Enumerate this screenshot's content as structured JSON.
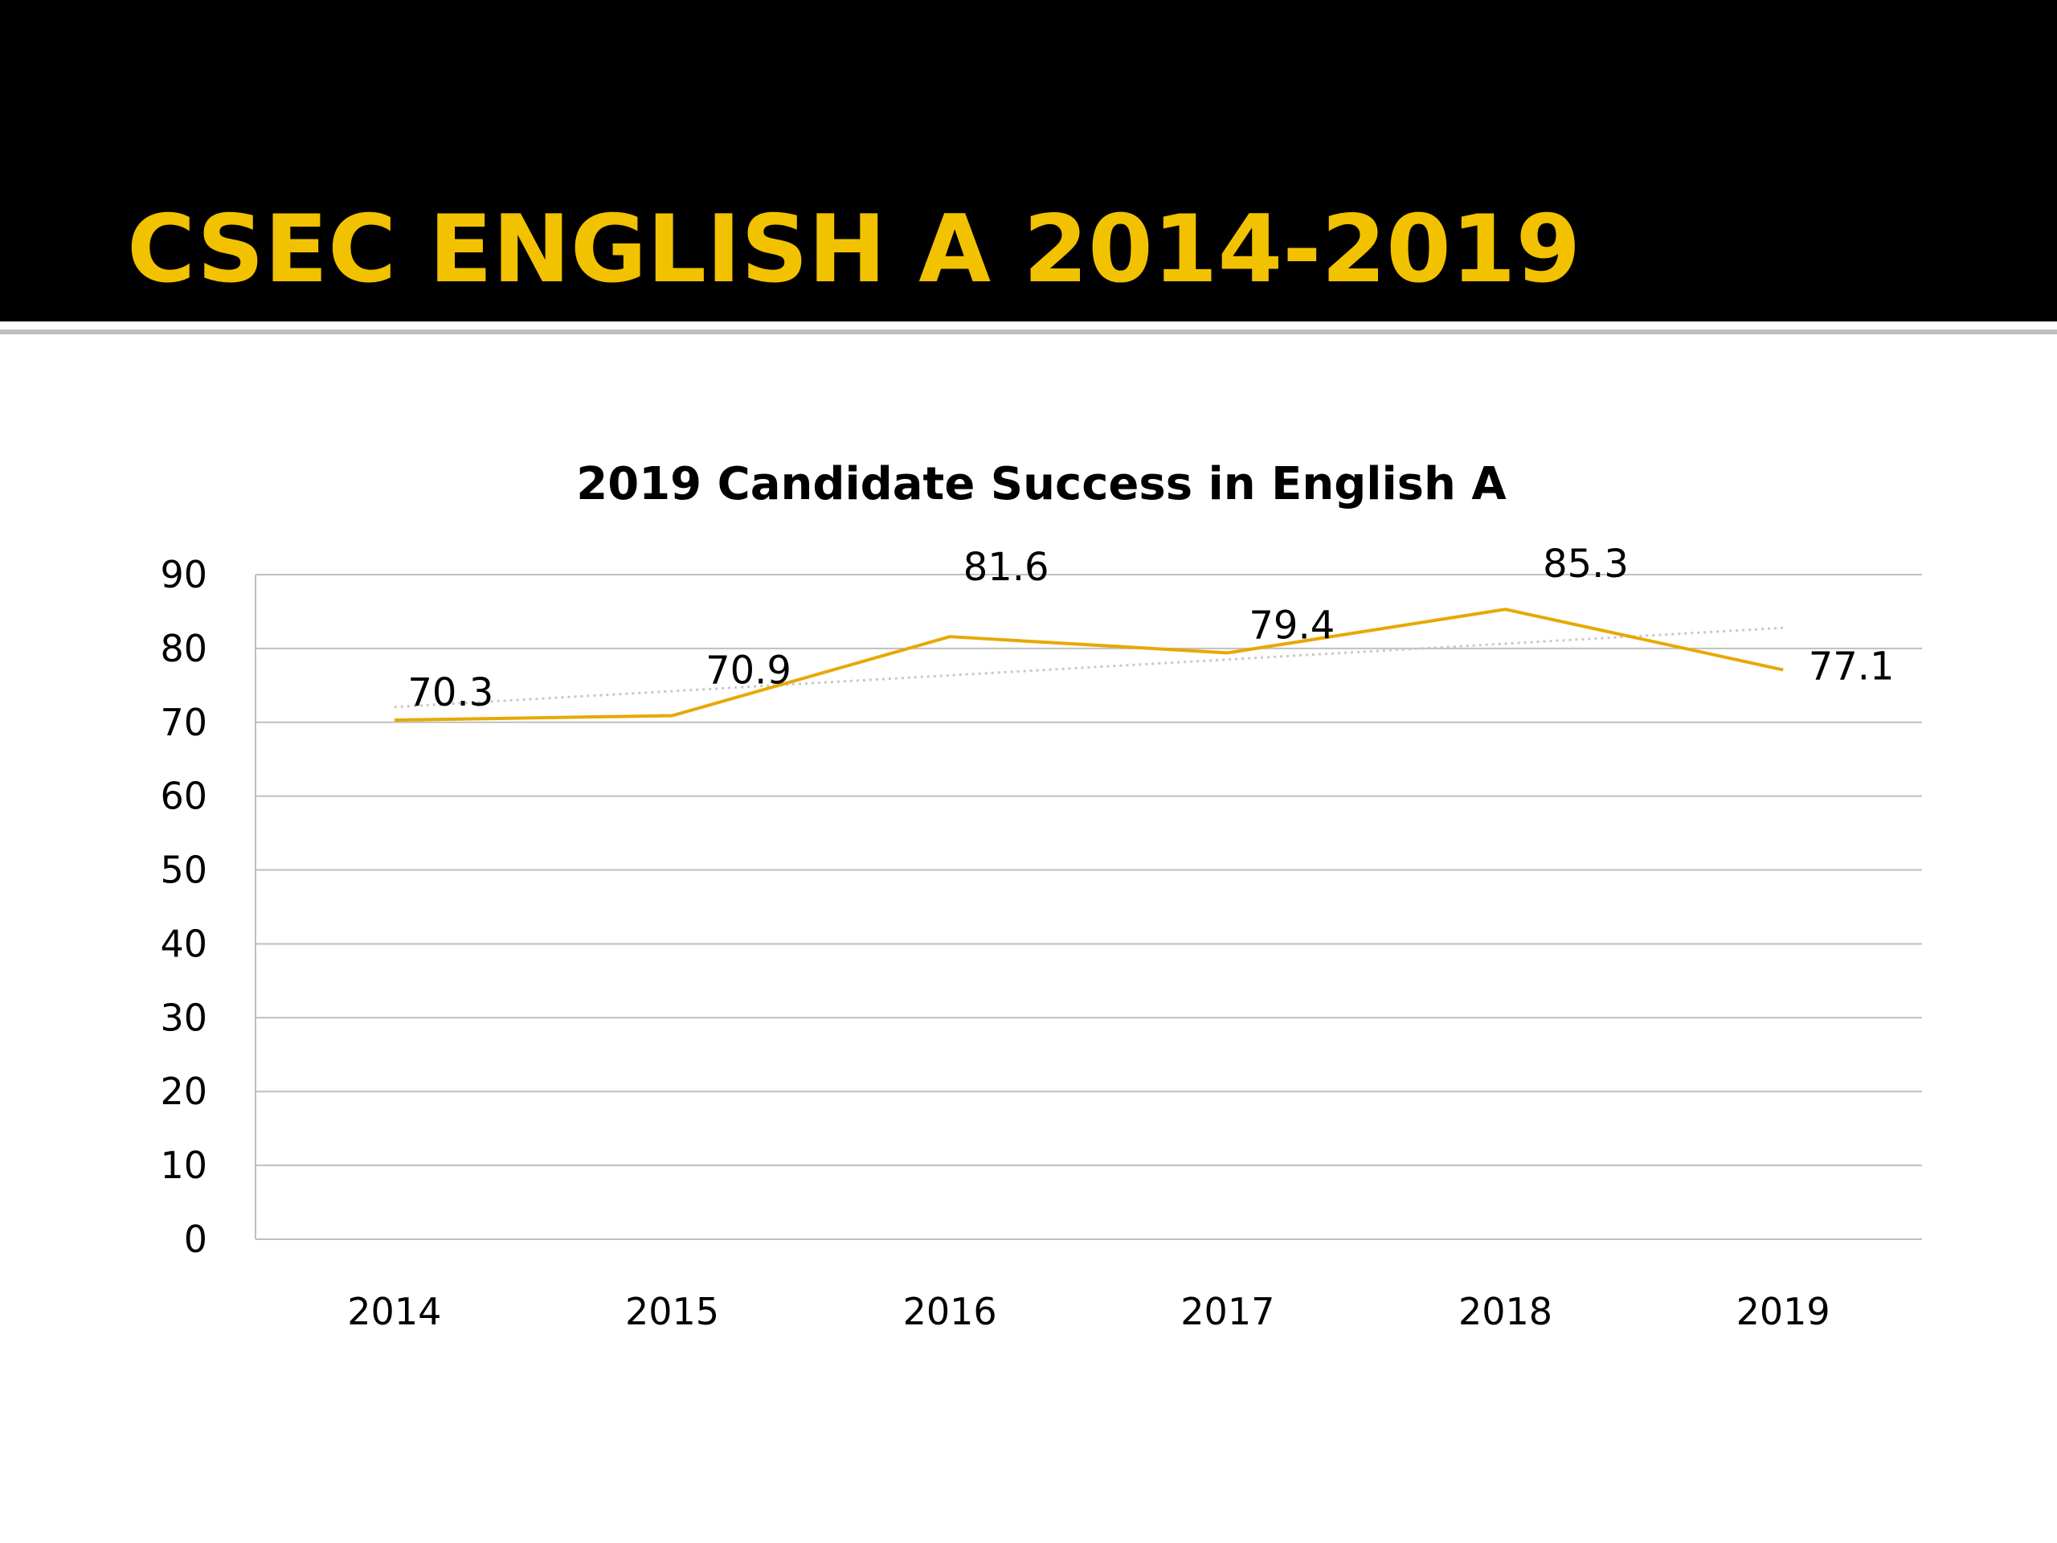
{
  "slide": {
    "title": "CSEC ENGLISH A 2014-2019",
    "title_color": "#f2c200",
    "band_color": "#000000"
  },
  "chart_data": {
    "type": "line",
    "title": "2019 Candidate Success in English A",
    "categories": [
      "2014",
      "2015",
      "2016",
      "2017",
      "2018",
      "2019"
    ],
    "series": [
      {
        "values": [
          70.3,
          70.9,
          81.6,
          79.4,
          85.3,
          77.1
        ],
        "color": "#e8a800",
        "data_labels": [
          "70.3",
          "70.9",
          "81.6",
          "79.4",
          "85.3",
          "77.1"
        ]
      }
    ],
    "trendline": {
      "type": "linear",
      "style": "dotted",
      "color": "#c8c8c8"
    },
    "ylim": [
      0,
      90
    ],
    "yticks": [
      0,
      10,
      20,
      30,
      40,
      50,
      60,
      70,
      80,
      90
    ],
    "grid": true,
    "legend": "none",
    "xlabel": "",
    "ylabel": ""
  }
}
